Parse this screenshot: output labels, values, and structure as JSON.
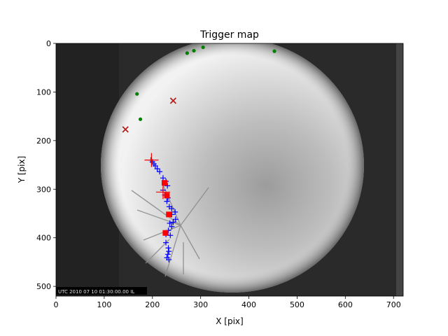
{
  "chart_data": {
    "type": "scatter",
    "title": "Trigger map",
    "xlabel": "X [pix]",
    "ylabel": "Y [pix]",
    "xlim": [
      0,
      720
    ],
    "ylim": [
      520,
      0
    ],
    "x_ticks": [
      0,
      100,
      200,
      300,
      400,
      500,
      600,
      700
    ],
    "y_ticks": [
      0,
      100,
      200,
      300,
      400,
      500
    ],
    "grid": false,
    "background": "all-sky camera image (fisheye)",
    "image_timestamp": "UTC 2010 07 10 01:30:00.00 IL",
    "series": [
      {
        "marker": "green-dot",
        "color": "#008000",
        "points": [
          [
            168,
            104
          ],
          [
            175,
            156
          ],
          [
            272,
            20
          ],
          [
            286,
            15
          ],
          [
            305,
            8
          ],
          [
            453,
            16
          ]
        ]
      },
      {
        "marker": "red-x",
        "color": "#b22222",
        "points": [
          [
            144,
            177
          ],
          [
            243,
            118
          ]
        ]
      },
      {
        "marker": "blue-plus",
        "color": "#0000ff",
        "points": [
          [
            197,
            240
          ],
          [
            200,
            244
          ],
          [
            203,
            248
          ],
          [
            206,
            252
          ],
          [
            210,
            258
          ],
          [
            215,
            264
          ],
          [
            222,
            277
          ],
          [
            228,
            284
          ],
          [
            231,
            293
          ],
          [
            222,
            302
          ],
          [
            226,
            312
          ],
          [
            232,
            318
          ],
          [
            230,
            325
          ],
          [
            235,
            336
          ],
          [
            240,
            340
          ],
          [
            247,
            347
          ],
          [
            240,
            352
          ],
          [
            248,
            362
          ],
          [
            243,
            368
          ],
          [
            236,
            370
          ],
          [
            240,
            377
          ],
          [
            233,
            385
          ],
          [
            228,
            393
          ],
          [
            237,
            395
          ],
          [
            228,
            410
          ],
          [
            233,
            421
          ],
          [
            234,
            428
          ],
          [
            232,
            434
          ],
          [
            230,
            441
          ],
          [
            234,
            445
          ]
        ]
      },
      {
        "marker": "red-square",
        "color": "#ff0000",
        "points": [
          [
            225,
            287
          ],
          [
            230,
            313
          ],
          [
            234,
            352
          ],
          [
            227,
            390
          ]
        ]
      },
      {
        "marker": "red-plus-large",
        "color": "#ff0000",
        "points": [
          [
            198,
            240
          ],
          [
            222,
            306
          ]
        ]
      }
    ]
  }
}
